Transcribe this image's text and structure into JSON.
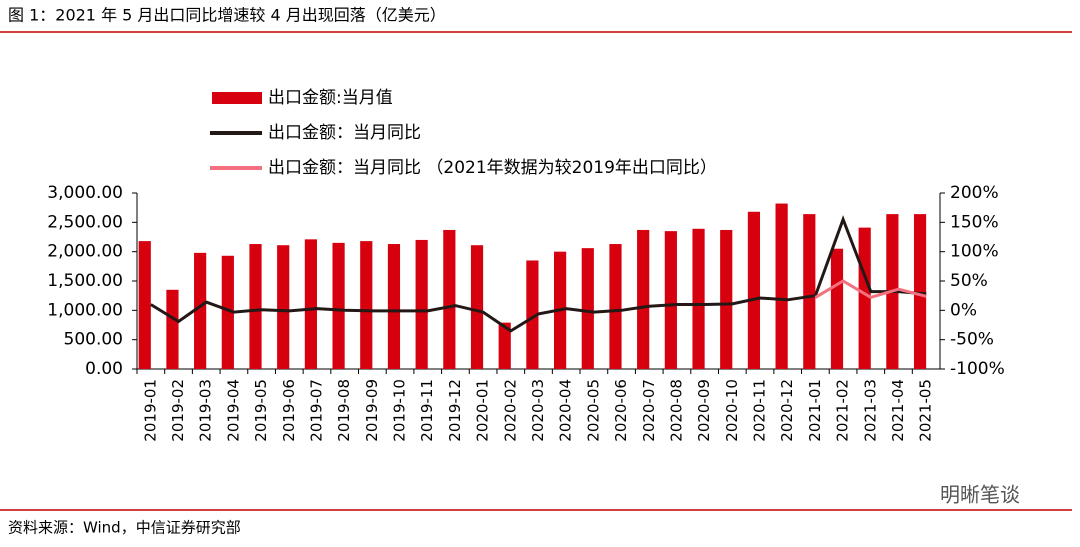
{
  "title": "图 1：2021 年 5 月出口同比增速较 4 月出现回落（亿美元）",
  "source": "资料来源：Wind，中信证券研究部",
  "watermark": "明晰笔谈",
  "chart_data": {
    "type": "bar",
    "categories": [
      "2019-01",
      "2019-02",
      "2019-03",
      "2019-04",
      "2019-05",
      "2019-06",
      "2019-07",
      "2019-08",
      "2019-09",
      "2019-10",
      "2019-11",
      "2019-12",
      "2020-01",
      "2020-02",
      "2020-03",
      "2020-04",
      "2020-05",
      "2020-06",
      "2020-07",
      "2020-08",
      "2020-09",
      "2020-10",
      "2020-11",
      "2020-12",
      "2021-01",
      "2021-02",
      "2021-03",
      "2021-04",
      "2021-05"
    ],
    "series": [
      {
        "name": "出口金额:当月值",
        "type": "bar",
        "color": "#d7000f",
        "values": [
          2180,
          1350,
          1980,
          1930,
          2130,
          2110,
          2210,
          2150,
          2180,
          2130,
          2200,
          2370,
          2110,
          790,
          1850,
          2000,
          2060,
          2130,
          2370,
          2350,
          2390,
          2370,
          2680,
          2820,
          2640,
          2050,
          2410,
          2640,
          2640
        ]
      },
      {
        "name": "出口金额：当月同比",
        "type": "line",
        "axis": "y2",
        "color": "#231815",
        "values": [
          10,
          -19,
          14,
          -3,
          1,
          -1,
          3,
          0,
          -1,
          -1,
          -1,
          8,
          -3,
          -35,
          -6,
          3,
          -3,
          0,
          7,
          10,
          10,
          11,
          21,
          18,
          25,
          155,
          32,
          32,
          28
        ]
      },
      {
        "name": "出口金额：当月同比 （2021年数据为较2019年出口同比）",
        "type": "line",
        "axis": "y2",
        "color": "#f4707e",
        "values": [
          null,
          null,
          null,
          null,
          null,
          null,
          null,
          null,
          null,
          null,
          null,
          null,
          null,
          null,
          null,
          null,
          null,
          null,
          null,
          null,
          null,
          null,
          null,
          null,
          22,
          50,
          22,
          36,
          24
        ]
      }
    ],
    "ylim": [
      0,
      3000
    ],
    "yticks": [
      {
        "value": 0,
        "label": "0.00"
      },
      {
        "value": 500,
        "label": "500.00"
      },
      {
        "value": 1000,
        "label": "1,000.00"
      },
      {
        "value": 1500,
        "label": "1,500.00"
      },
      {
        "value": 2000,
        "label": "2,000.00"
      },
      {
        "value": 2500,
        "label": "2,500.00"
      },
      {
        "value": 3000,
        "label": "3,000.00"
      }
    ],
    "y2lim": [
      -100,
      200
    ],
    "y2ticks": [
      {
        "value": -100,
        "label": "-100%"
      },
      {
        "value": -50,
        "label": "-50%"
      },
      {
        "value": 0,
        "label": "0%"
      },
      {
        "value": 50,
        "label": "50%"
      },
      {
        "value": 100,
        "label": "100%"
      },
      {
        "value": 150,
        "label": "150%"
      },
      {
        "value": 200,
        "label": "200%"
      }
    ]
  }
}
